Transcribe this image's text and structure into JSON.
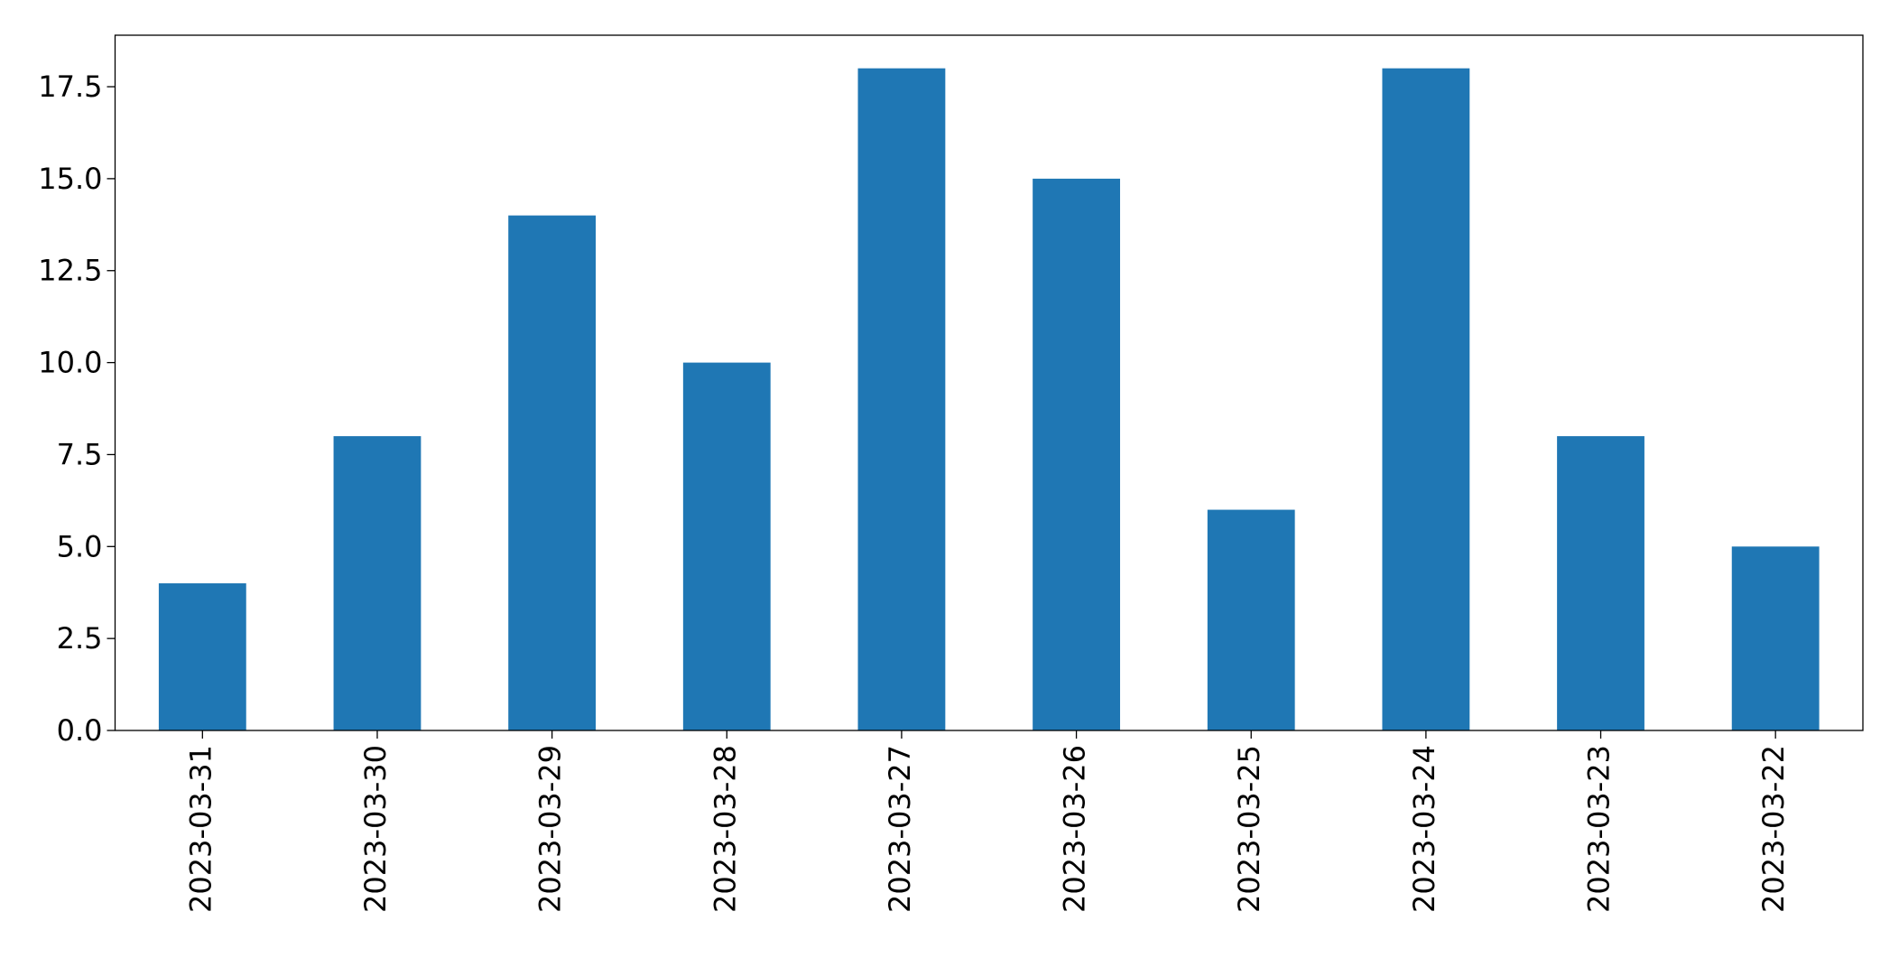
{
  "chart_data": {
    "type": "bar",
    "categories": [
      "2023-03-31",
      "2023-03-30",
      "2023-03-29",
      "2023-03-28",
      "2023-03-27",
      "2023-03-26",
      "2023-03-25",
      "2023-03-24",
      "2023-03-23",
      "2023-03-22"
    ],
    "values": [
      4,
      8,
      14,
      10,
      18,
      15,
      6,
      18,
      8,
      5
    ],
    "color": "#1f77b4",
    "ylim": [
      0,
      18.9
    ],
    "yticks": [
      {
        "value": 0,
        "label": "0.0"
      },
      {
        "value": 2.5,
        "label": "2.5"
      },
      {
        "value": 5,
        "label": "5.0"
      },
      {
        "value": 7.5,
        "label": "7.5"
      },
      {
        "value": 10,
        "label": "10.0"
      },
      {
        "value": 12.5,
        "label": "12.5"
      },
      {
        "value": 15,
        "label": "15.0"
      },
      {
        "value": 17.5,
        "label": "17.5"
      }
    ],
    "grid": false
  }
}
